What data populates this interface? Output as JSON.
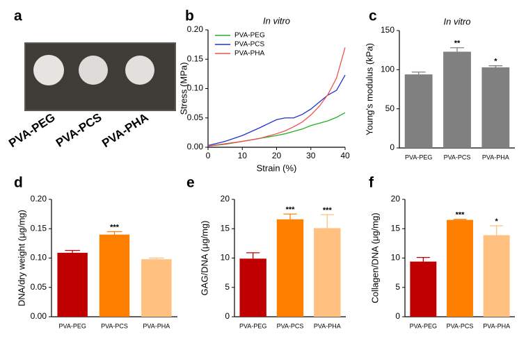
{
  "photo": {
    "panel": "a",
    "labels": [
      "PVA-PEG",
      "PVA-PCS",
      "PVA-PHA"
    ]
  },
  "chart_data": [
    {
      "type": "line",
      "panel": "b",
      "title": "In vitro",
      "x_label": "Strain (%)",
      "y_label": "Stress (MPa)",
      "x": [
        0,
        5,
        10,
        15,
        20,
        22.5,
        25,
        27.5,
        30,
        32.5,
        35,
        37.5,
        40
      ],
      "series": [
        {
          "name": "PVA-PEG",
          "color": "#22b022",
          "values": [
            0.002,
            0.005,
            0.01,
            0.015,
            0.02,
            0.023,
            0.027,
            0.031,
            0.037,
            0.041,
            0.045,
            0.051,
            0.059
          ]
        },
        {
          "name": "PVA-PCS",
          "color": "#2030d0",
          "values": [
            0.003,
            0.01,
            0.02,
            0.033,
            0.047,
            0.05,
            0.05,
            0.056,
            0.065,
            0.077,
            0.089,
            0.097,
            0.123
          ]
        },
        {
          "name": "PVA-PHA",
          "color": "#f05050",
          "values": [
            0.002,
            0.006,
            0.01,
            0.015,
            0.023,
            0.028,
            0.035,
            0.043,
            0.055,
            0.07,
            0.09,
            0.118,
            0.17
          ]
        }
      ],
      "xlim": [
        0,
        40
      ],
      "xticks": [
        0,
        10,
        20,
        30,
        40
      ],
      "ylim": [
        0,
        0.2
      ],
      "yticks": [
        {
          "value": 0,
          "label": "0.00"
        },
        {
          "value": 0.05,
          "label": "0.05"
        },
        {
          "value": 0.1,
          "label": "0.10"
        },
        {
          "value": 0.15,
          "label": "0.15"
        },
        {
          "value": 0.2,
          "label": "0.20"
        }
      ],
      "legend": "upper-left"
    },
    {
      "type": "bar",
      "panel": "c",
      "title": "In vitro",
      "y_label": "Young's modulus (kPa)",
      "categories": [
        "PVA-PEG",
        "PVA-PCS",
        "PVA-PHA"
      ],
      "values": [
        94,
        123,
        103
      ],
      "errors": [
        3,
        5,
        2
      ],
      "annotations": [
        null,
        "**",
        "*"
      ],
      "colors": [
        "#808080",
        "#808080",
        "#808080"
      ],
      "ylim": [
        0,
        150
      ],
      "yticks": [
        0,
        50,
        100,
        150
      ]
    },
    {
      "type": "bar",
      "panel": "d",
      "y_label": "DNA/dry weight (μg/mg)",
      "categories": [
        "PVA-PEG",
        "PVA-PCS",
        "PVA-PHA"
      ],
      "values": [
        0.109,
        0.14,
        0.098
      ],
      "errors": [
        0.004,
        0.005,
        0.002
      ],
      "annotations": [
        null,
        "***",
        null
      ],
      "colors": [
        "#c00000",
        "#ff8000",
        "#ffc080"
      ],
      "ylim": [
        0,
        0.2
      ],
      "yticks": [
        {
          "value": 0,
          "label": "0.00"
        },
        {
          "value": 0.05,
          "label": "0.05"
        },
        {
          "value": 0.1,
          "label": "0.10"
        },
        {
          "value": 0.15,
          "label": "0.15"
        },
        {
          "value": 0.2,
          "label": "0.20"
        }
      ]
    },
    {
      "type": "bar",
      "panel": "e",
      "y_label": "GAG/DNA (μg/mg)",
      "categories": [
        "PVA-PEG",
        "PVA-PCS",
        "PVA-PHA"
      ],
      "values": [
        9.9,
        16.6,
        15.1
      ],
      "errors": [
        1.0,
        0.9,
        2.3
      ],
      "annotations": [
        null,
        "***",
        "***"
      ],
      "colors": [
        "#c00000",
        "#ff8000",
        "#ffc080"
      ],
      "ylim": [
        0,
        20
      ],
      "yticks": [
        0,
        5,
        10,
        15,
        20
      ]
    },
    {
      "type": "bar",
      "panel": "f",
      "y_label": "Collagen/DNA (μg/mg)",
      "categories": [
        "PVA-PEG",
        "PVA-PCS",
        "PVA-PHA"
      ],
      "values": [
        9.4,
        16.5,
        13.9
      ],
      "errors": [
        0.7,
        0.1,
        1.6
      ],
      "annotations": [
        null,
        "***",
        "*"
      ],
      "colors": [
        "#c00000",
        "#ff8000",
        "#ffc080"
      ],
      "ylim": [
        0,
        20
      ],
      "yticks": [
        0,
        5,
        10,
        15,
        20
      ]
    }
  ]
}
